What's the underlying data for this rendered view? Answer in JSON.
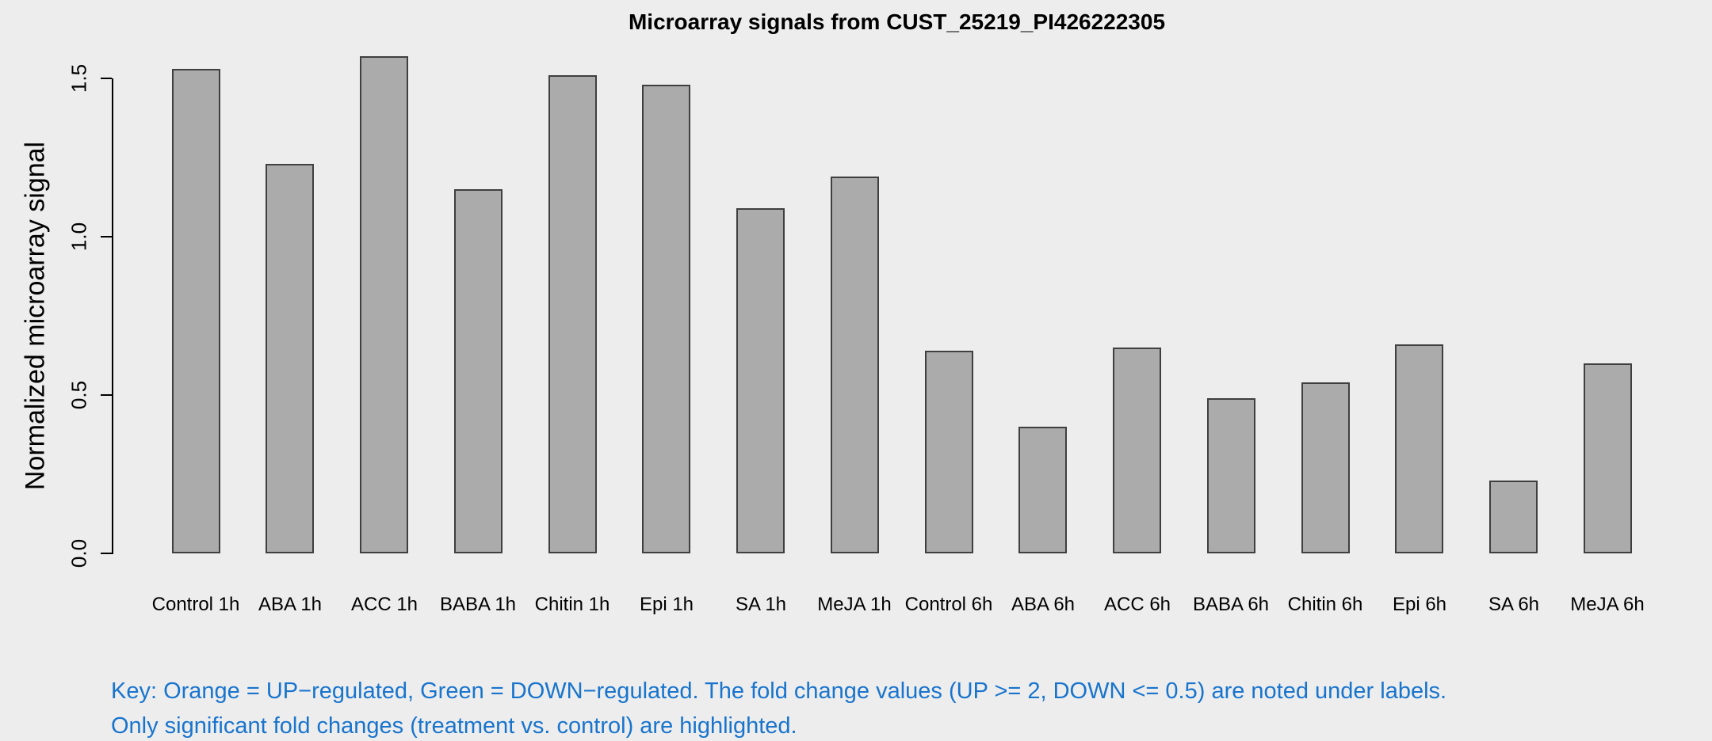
{
  "chart_data": {
    "type": "bar",
    "title": "Microarray signals from CUST_25219_PI426222305",
    "xlabel": "",
    "ylabel": "Normalized microarray signal",
    "categories": [
      "Control 1h",
      "ABA 1h",
      "ACC 1h",
      "BABA 1h",
      "Chitin 1h",
      "Epi 1h",
      "SA 1h",
      "MeJA 1h",
      "Control 6h",
      "ABA 6h",
      "ACC 6h",
      "BABA 6h",
      "Chitin 6h",
      "Epi 6h",
      "SA 6h",
      "MeJA 6h"
    ],
    "values": [
      1.53,
      1.23,
      1.57,
      1.15,
      1.51,
      1.48,
      1.09,
      1.19,
      0.64,
      0.4,
      0.65,
      0.49,
      0.54,
      0.66,
      0.23,
      0.6
    ],
    "ylim": [
      0,
      1.5
    ],
    "yticks": [
      0.0,
      0.5,
      1.0,
      1.5
    ],
    "ytick_labels": [
      "0.0",
      "0.5",
      "1.0",
      "1.5"
    ],
    "grid": false,
    "legend_position": "none",
    "bar_fill_color": "#ABABAB",
    "bar_border_color": "#3F3F3F",
    "background_color": "#EDEDED",
    "axis_color": "#000000"
  },
  "key_note": {
    "line1": "Key: Orange = UP−regulated, Green = DOWN−regulated. The fold change values (UP >= 2, DOWN <= 0.5) are noted under labels.",
    "line2": "Only significant fold changes (treatment vs. control) are highlighted.",
    "color": "#1874CD"
  }
}
